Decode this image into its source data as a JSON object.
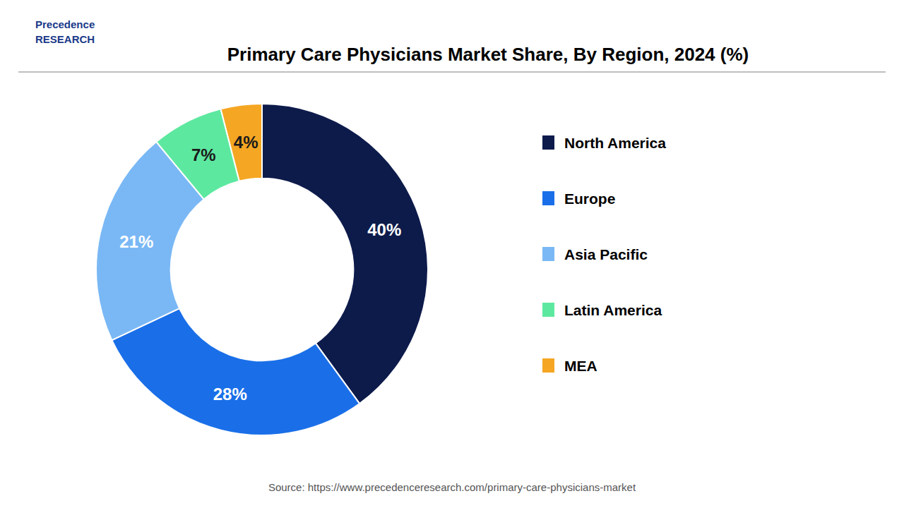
{
  "chart_data": {
    "type": "donut",
    "title": "Primary Care Physicians Market Share, By Region, 2024 (%)",
    "categories": [
      "North America",
      "Europe",
      "Asia Pacific",
      "Latin America",
      "MEA"
    ],
    "values": [
      40,
      28,
      21,
      7,
      4
    ],
    "value_labels": [
      "40%",
      "28%",
      "21%",
      "7%",
      "4%"
    ],
    "colors": [
      "#0d1b4b",
      "#1a6fe8",
      "#7ab8f5",
      "#5de8a0",
      "#f5a623"
    ],
    "data_labels": true,
    "legend": "right",
    "annotations": [
      "Source: https://www.precedenceresearch.com/primary-care-physicians-market",
      "Precedence\nRESEARCH"
    ]
  }
}
